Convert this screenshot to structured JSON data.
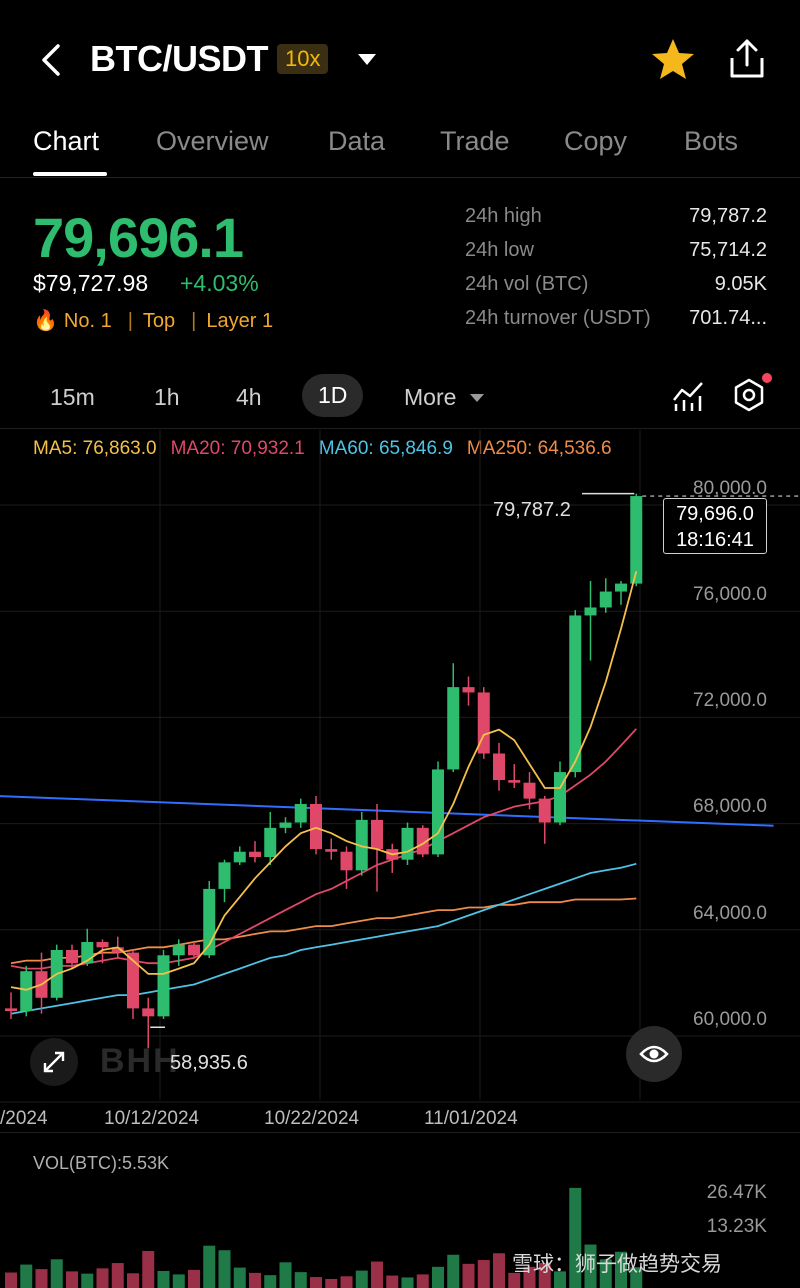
{
  "header": {
    "title": "BTC/USDT",
    "leverage": "10x"
  },
  "tabs": [
    {
      "label": "Chart",
      "active": true
    },
    {
      "label": "Overview"
    },
    {
      "label": "Data"
    },
    {
      "label": "Trade"
    },
    {
      "label": "Copy"
    },
    {
      "label": "Bots"
    }
  ],
  "ticker": {
    "last_price": "79,696.1",
    "fiat_price": "$79,727.98",
    "change_pct": "+4.03%",
    "tags": [
      "No. 1",
      "Top",
      "Layer 1"
    ],
    "fire_icon": "🔥"
  },
  "stats": [
    {
      "label": "24h high",
      "value": "79,787.2"
    },
    {
      "label": "24h low",
      "value": "75,714.2"
    },
    {
      "label": "24h vol (BTC)",
      "value": "9.05K"
    },
    {
      "label": "24h turnover (USDT)",
      "value": "701.74..."
    }
  ],
  "intervals": {
    "i15m": "15m",
    "i1h": "1h",
    "i4h": "4h",
    "i1d": "1D",
    "more": "More"
  },
  "ma_legend": {
    "ma5": "MA5: 76,863.0",
    "ma20": "MA20: 70,932.1",
    "ma60": "MA60: 65,846.9",
    "ma250": "MA250: 64,536.6"
  },
  "colors": {
    "up": "#2ebd6e",
    "down": "#e0486a",
    "ma5": "#f5c04a",
    "ma20": "#e0486a",
    "ma60": "#4fc3e6",
    "ma250": "#f08c4a",
    "trend": "#2f6fff"
  },
  "chart_labels": {
    "high_marker": "79,787.2",
    "low_marker": "58,935.6",
    "current_price": "79,696.0",
    "countdown": "18:16:41",
    "logo": "BHH"
  },
  "chart_data": {
    "type": "candlestick",
    "y_ticks": [
      "80,000.0",
      "76,000.0",
      "72,000.0",
      "68,000.0",
      "64,000.0",
      "60,000.0"
    ],
    "ylim": [
      59000,
      80600
    ],
    "x_ticks": [
      "/2024",
      "10/12/2024",
      "10/22/2024",
      "11/01/2024"
    ],
    "candles": [
      [
        60400,
        61000,
        60000,
        60300
      ],
      [
        60300,
        62000,
        60100,
        61800
      ],
      [
        61800,
        62500,
        60200,
        60800
      ],
      [
        60800,
        62800,
        60700,
        62600
      ],
      [
        62600,
        62800,
        61900,
        62100
      ],
      [
        62100,
        63400,
        62000,
        62900
      ],
      [
        62900,
        63000,
        62100,
        62700
      ],
      [
        62700,
        63100,
        62300,
        62500
      ],
      [
        62500,
        62600,
        60000,
        60400
      ],
      [
        60400,
        60800,
        58900,
        60100
      ],
      [
        60100,
        62600,
        60000,
        62400
      ],
      [
        62400,
        63000,
        62000,
        62800
      ],
      [
        62800,
        62900,
        62300,
        62400
      ],
      [
        62400,
        65200,
        62300,
        64900
      ],
      [
        64900,
        66000,
        64400,
        65900
      ],
      [
        65900,
        66500,
        65800,
        66300
      ],
      [
        66300,
        66700,
        65900,
        66100
      ],
      [
        66100,
        67800,
        65800,
        67200
      ],
      [
        67200,
        67600,
        67000,
        67400
      ],
      [
        67400,
        68300,
        67200,
        68100
      ],
      [
        68100,
        68400,
        66200,
        66400
      ],
      [
        66400,
        66800,
        66000,
        66300
      ],
      [
        66300,
        66500,
        64900,
        65600
      ],
      [
        65600,
        67800,
        65400,
        67500
      ],
      [
        67500,
        68100,
        64800,
        66400
      ],
      [
        66400,
        66600,
        65500,
        66000
      ],
      [
        66000,
        67400,
        65800,
        67200
      ],
      [
        67200,
        67300,
        66100,
        66200
      ],
      [
        66200,
        69700,
        66100,
        69400
      ],
      [
        69400,
        73400,
        69300,
        72500
      ],
      [
        72500,
        72900,
        71800,
        72300
      ],
      [
        72300,
        72500,
        69800,
        70000
      ],
      [
        70000,
        70400,
        68600,
        69000
      ],
      [
        69000,
        69600,
        68700,
        68900
      ],
      [
        68900,
        69300,
        67900,
        68300
      ],
      [
        68300,
        68400,
        66600,
        67400
      ],
      [
        67400,
        69700,
        67300,
        69300
      ],
      [
        69300,
        75400,
        69100,
        75200
      ],
      [
        75200,
        76500,
        73500,
        75500
      ],
      [
        75500,
        76600,
        75300,
        76100
      ],
      [
        76100,
        76500,
        75600,
        76400
      ],
      [
        76400,
        79787,
        76300,
        79696
      ]
    ],
    "ma5": [
      61200,
      61100,
      61300,
      61700,
      61900,
      62200,
      62600,
      62700,
      62200,
      61700,
      61700,
      61900,
      62100,
      62800,
      63900,
      64600,
      65300,
      65900,
      66500,
      67000,
      67200,
      67000,
      66700,
      66500,
      66400,
      66200,
      66300,
      66600,
      67000,
      68100,
      69500,
      70700,
      70900,
      70500,
      69600,
      68700,
      68700,
      69700,
      71000,
      72700,
      74700,
      76863
    ],
    "ma20": [
      62000,
      61900,
      61900,
      62000,
      62000,
      62100,
      62200,
      62300,
      62200,
      62100,
      62100,
      62200,
      62300,
      62600,
      62900,
      63200,
      63500,
      63800,
      64100,
      64400,
      64700,
      64900,
      65200,
      65500,
      65800,
      66000,
      66200,
      66400,
      66700,
      67000,
      67300,
      67600,
      67800,
      68000,
      68100,
      68200,
      68400,
      68800,
      69200,
      69700,
      70300,
      70932
    ],
    "ma60": [
      60200,
      60300,
      60400,
      60500,
      60600,
      60700,
      60800,
      60900,
      60900,
      61000,
      61100,
      61200,
      61300,
      61500,
      61700,
      61900,
      62100,
      62300,
      62400,
      62600,
      62700,
      62800,
      62900,
      63000,
      63100,
      63200,
      63300,
      63400,
      63500,
      63700,
      63900,
      64100,
      64300,
      64500,
      64700,
      64900,
      65100,
      65300,
      65500,
      65600,
      65700,
      65847
    ],
    "ma250": [
      62100,
      62200,
      62200,
      62300,
      62300,
      62400,
      62500,
      62500,
      62600,
      62700,
      62700,
      62800,
      62900,
      63000,
      63000,
      63100,
      63200,
      63300,
      63300,
      63400,
      63500,
      63500,
      63600,
      63700,
      63800,
      63800,
      63900,
      64000,
      64100,
      64100,
      64200,
      64200,
      64300,
      64300,
      64400,
      64400,
      64400,
      64500,
      64500,
      64500,
      64500,
      64537
    ],
    "trendline": [
      [
        -1,
        68400
      ],
      [
        50,
        67280
      ]
    ],
    "volume_label": "VOL(BTC):5.53K",
    "volume_ticks": [
      "26.47K",
      "13.23K"
    ],
    "volume": [
      4.1,
      6.2,
      5.0,
      7.6,
      4.4,
      3.8,
      5.2,
      6.6,
      3.9,
      9.8,
      4.5,
      3.6,
      4.8,
      11.2,
      10.0,
      5.4,
      4.0,
      3.4,
      6.8,
      4.2,
      2.9,
      2.4,
      3.1,
      4.6,
      7.0,
      3.3,
      2.8,
      3.6,
      5.6,
      8.8,
      6.4,
      7.4,
      9.2,
      4.0,
      5.6,
      6.6,
      4.4,
      26.5,
      11.5,
      7.6,
      9.6,
      5.5
    ]
  },
  "watermark": "雪球：狮子做趋势交易"
}
